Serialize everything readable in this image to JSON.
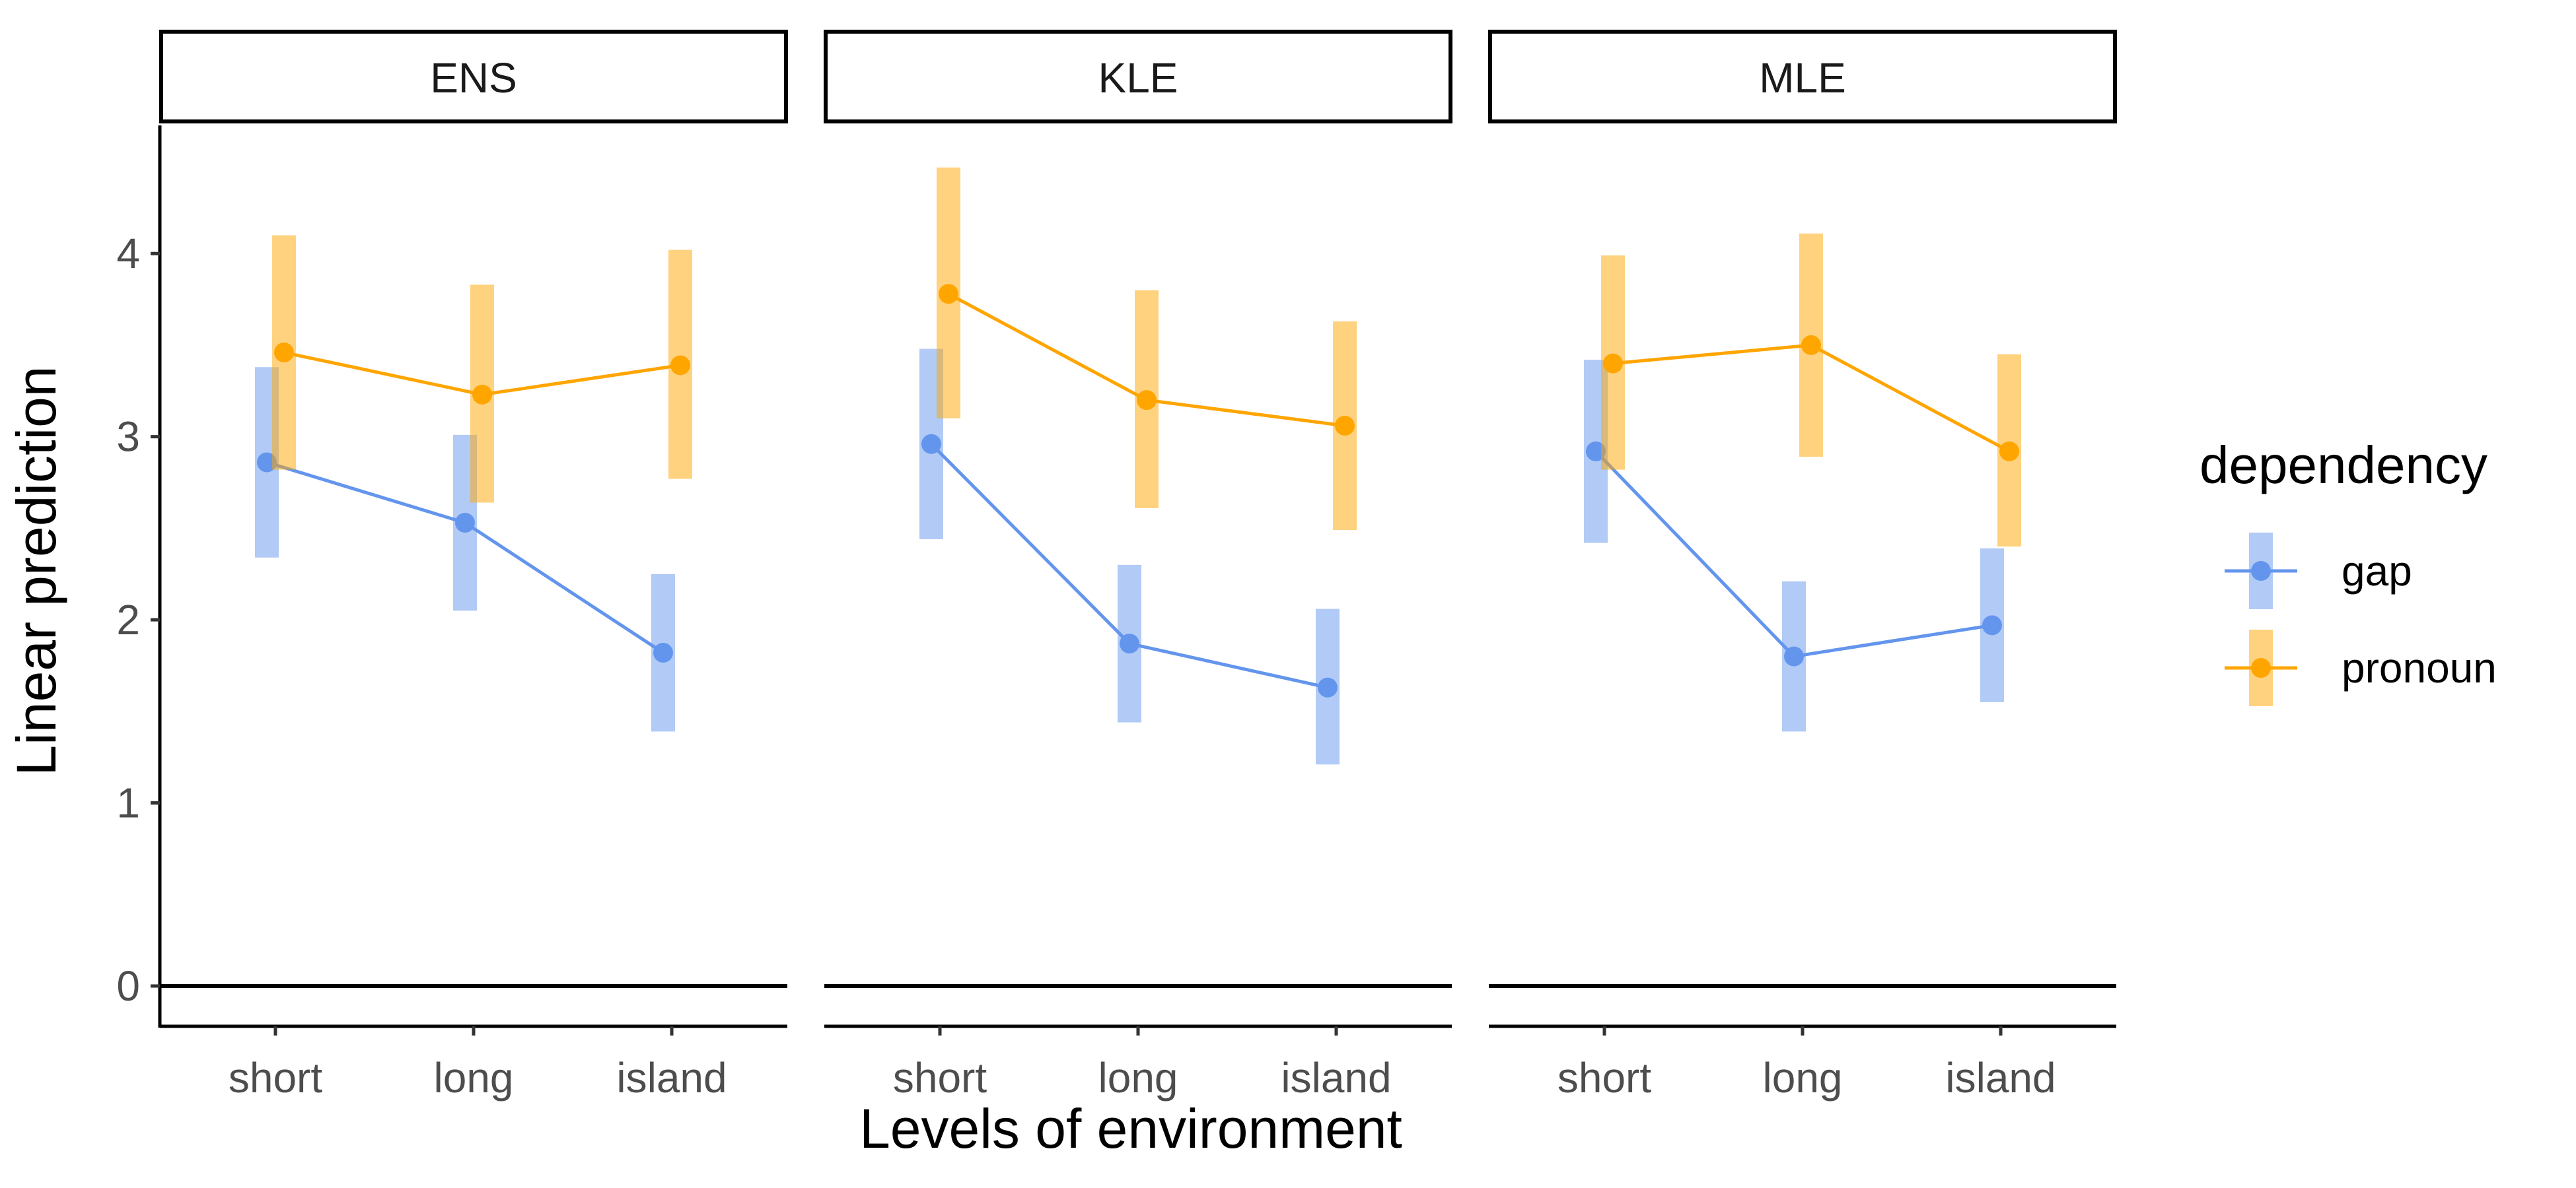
{
  "chart_data": {
    "type": "line",
    "facet_by": "panel",
    "panels": [
      "ENS",
      "KLE",
      "MLE"
    ],
    "categories": [
      "short",
      "long",
      "island"
    ],
    "xlabel": "Levels of environment",
    "ylabel": "Linear prediction",
    "ylim": [
      -0.22,
      4.7
    ],
    "yticks": [
      0,
      1,
      2,
      3,
      4
    ],
    "legend": {
      "title": "dependency",
      "position": "right"
    },
    "grid": false,
    "reference_line_y": 0,
    "series": [
      {
        "name": "gap",
        "color": "#6495ED",
        "panels": {
          "ENS": {
            "values": [
              2.86,
              2.53,
              1.82
            ],
            "lower": [
              2.34,
              2.05,
              1.39
            ],
            "upper": [
              3.38,
              3.01,
              2.25
            ]
          },
          "KLE": {
            "values": [
              2.96,
              1.87,
              1.63
            ],
            "lower": [
              2.44,
              1.44,
              1.21
            ],
            "upper": [
              3.48,
              2.3,
              2.06
            ]
          },
          "MLE": {
            "values": [
              2.92,
              1.8,
              1.97
            ],
            "lower": [
              2.42,
              1.39,
              1.55
            ],
            "upper": [
              3.42,
              2.21,
              2.39
            ]
          }
        }
      },
      {
        "name": "pronoun",
        "color": "#FFA500",
        "panels": {
          "ENS": {
            "values": [
              3.46,
              3.23,
              3.39
            ],
            "lower": [
              2.82,
              2.64,
              2.77
            ],
            "upper": [
              4.1,
              3.83,
              4.02
            ]
          },
          "KLE": {
            "values": [
              3.78,
              3.2,
              3.06
            ],
            "lower": [
              3.1,
              2.61,
              2.49
            ],
            "upper": [
              4.47,
              3.8,
              3.63
            ]
          },
          "MLE": {
            "values": [
              3.4,
              3.5,
              2.92
            ],
            "lower": [
              2.82,
              2.89,
              2.4
            ],
            "upper": [
              3.99,
              4.11,
              3.45
            ]
          }
        }
      }
    ]
  }
}
